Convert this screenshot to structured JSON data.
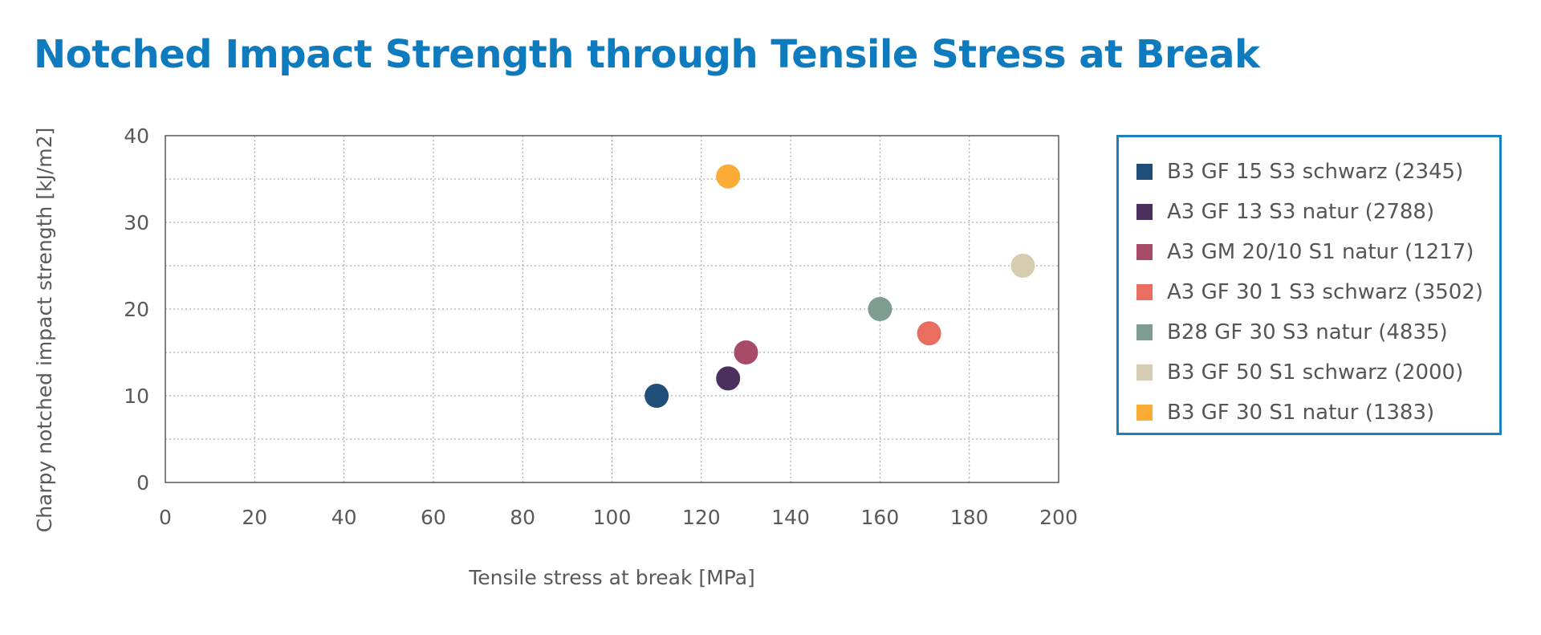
{
  "chart_data": {
    "type": "scatter",
    "title": "Notched Impact Strength through Tensile Stress at Break",
    "xlabel": "Tensile stress at break [MPa]",
    "ylabel": "Charpy notched impact strength [kJ/m2]",
    "xlim": [
      0,
      200
    ],
    "ylim": [
      0,
      40
    ],
    "x_ticks": [
      "0",
      "20",
      "40",
      "60",
      "80",
      "100",
      "120",
      "140",
      "160",
      "180",
      "200"
    ],
    "y_ticks": [
      "0",
      "10",
      "20",
      "30",
      "40"
    ],
    "grid": true,
    "legend_position": "right",
    "series": [
      {
        "name": "B3 GF 15 S3 schwarz (2345)",
        "color": "#1f4e79",
        "x": 110,
        "y": 10
      },
      {
        "name": "A3 GF 13 S3 natur (2788)",
        "color": "#4b2f5c",
        "x": 126,
        "y": 12
      },
      {
        "name": "A3 GM 20/10 S1 natur (1217)",
        "color": "#a84b68",
        "x": 130,
        "y": 15
      },
      {
        "name": "A3 GF 30 1 S3 schwarz (3502)",
        "color": "#ea6e5f",
        "x": 171,
        "y": 17.2
      },
      {
        "name": "B28 GF 30 S3 natur (4835)",
        "color": "#7f9c90",
        "x": 160,
        "y": 20
      },
      {
        "name": "B3 GF 50 S1 schwarz (2000)",
        "color": "#d6cdb1",
        "x": 192,
        "y": 25
      },
      {
        "name": "B3 GF 30 S1 natur (1383)",
        "color": "#fbac36",
        "x": 126,
        "y": 35.3
      }
    ]
  }
}
